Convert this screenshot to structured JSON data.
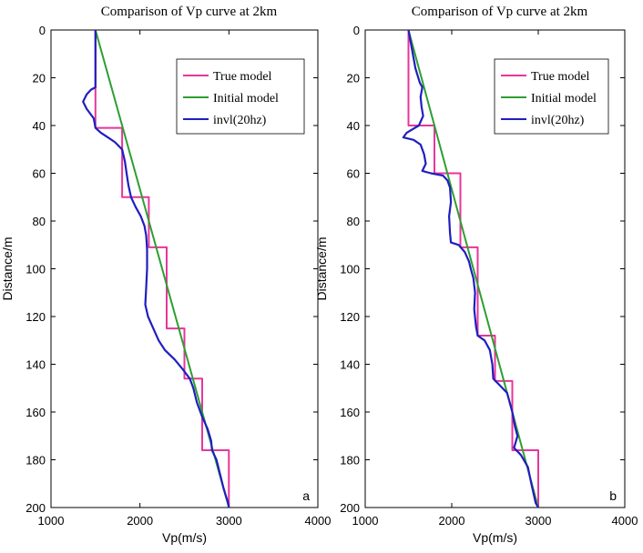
{
  "chart_data": [
    {
      "type": "line",
      "title": "Comparison of Vp curve at 2km",
      "xlabel": "Vp(m/s)",
      "ylabel": "Distance/m",
      "xlim": [
        1000,
        4000
      ],
      "ylim": [
        0,
        200
      ],
      "y_inverted": true,
      "xticks": [
        1000,
        2000,
        3000,
        4000
      ],
      "yticks": [
        0,
        20,
        40,
        60,
        80,
        100,
        120,
        140,
        160,
        180,
        200
      ],
      "panel_label": "a",
      "legend_position": "top-right",
      "series": [
        {
          "name": "True model",
          "color": "#e8359b",
          "points": [
            [
              1500,
              0
            ],
            [
              1500,
              41
            ],
            [
              1800,
              41
            ],
            [
              1800,
              70
            ],
            [
              2100,
              70
            ],
            [
              2100,
              91
            ],
            [
              2300,
              91
            ],
            [
              2300,
              125
            ],
            [
              2500,
              125
            ],
            [
              2500,
              146
            ],
            [
              2700,
              146
            ],
            [
              2700,
              176
            ],
            [
              3000,
              176
            ],
            [
              3000,
              200
            ]
          ]
        },
        {
          "name": "Initial model",
          "color": "#2e9e33",
          "points": [
            [
              1500,
              0
            ],
            [
              3000,
              200
            ]
          ]
        },
        {
          "name": "invl(20hz)",
          "color": "#1f1fbf",
          "points": [
            [
              1500,
              0
            ],
            [
              1500,
              24
            ],
            [
              1450,
              25
            ],
            [
              1400,
              27
            ],
            [
              1360,
              30
            ],
            [
              1400,
              33
            ],
            [
              1480,
              37
            ],
            [
              1500,
              41
            ],
            [
              1560,
              43
            ],
            [
              1640,
              45
            ],
            [
              1720,
              47
            ],
            [
              1800,
              50
            ],
            [
              1830,
              55
            ],
            [
              1850,
              60
            ],
            [
              1870,
              65
            ],
            [
              1900,
              70
            ],
            [
              1950,
              74
            ],
            [
              2010,
              78
            ],
            [
              2050,
              82
            ],
            [
              2070,
              86
            ],
            [
              2080,
              92
            ],
            [
              2080,
              100
            ],
            [
              2070,
              108
            ],
            [
              2060,
              115
            ],
            [
              2090,
              120
            ],
            [
              2150,
              125
            ],
            [
              2210,
              130
            ],
            [
              2280,
              134
            ],
            [
              2390,
              138
            ],
            [
              2480,
              142
            ],
            [
              2560,
              146
            ],
            [
              2600,
              150
            ],
            [
              2640,
              156
            ],
            [
              2700,
              162
            ],
            [
              2760,
              167
            ],
            [
              2800,
              172
            ],
            [
              2810,
              176
            ],
            [
              2860,
              180
            ],
            [
              2900,
              186
            ],
            [
              2940,
              192
            ],
            [
              2990,
              198
            ],
            [
              3000,
              200
            ]
          ]
        }
      ]
    },
    {
      "type": "line",
      "title": "Comparison of Vp curve at 2km",
      "xlabel": "Vp(m/s)",
      "ylabel": "Distance/m",
      "xlim": [
        1000,
        4000
      ],
      "ylim": [
        0,
        200
      ],
      "y_inverted": true,
      "xticks": [
        1000,
        2000,
        3000,
        4000
      ],
      "yticks": [
        0,
        20,
        40,
        60,
        80,
        100,
        120,
        140,
        160,
        180,
        200
      ],
      "panel_label": "b",
      "legend_position": "top-right",
      "series": [
        {
          "name": "True model",
          "color": "#e8359b",
          "points": [
            [
              1500,
              0
            ],
            [
              1500,
              40
            ],
            [
              1800,
              40
            ],
            [
              1800,
              60
            ],
            [
              2100,
              60
            ],
            [
              2100,
              91
            ],
            [
              2300,
              91
            ],
            [
              2300,
              128
            ],
            [
              2500,
              128
            ],
            [
              2500,
              147
            ],
            [
              2700,
              147
            ],
            [
              2700,
              176
            ],
            [
              3000,
              176
            ],
            [
              3000,
              200
            ]
          ]
        },
        {
          "name": "Initial model",
          "color": "#2e9e33",
          "points": [
            [
              1500,
              0
            ],
            [
              3000,
              200
            ]
          ]
        },
        {
          "name": "invl(20hz)",
          "color": "#1f1fbf",
          "points": [
            [
              1500,
              0
            ],
            [
              1540,
              8
            ],
            [
              1580,
              16
            ],
            [
              1630,
              22
            ],
            [
              1660,
              24
            ],
            [
              1640,
              28
            ],
            [
              1650,
              32
            ],
            [
              1670,
              36
            ],
            [
              1620,
              40
            ],
            [
              1480,
              43
            ],
            [
              1440,
              45
            ],
            [
              1560,
              46
            ],
            [
              1640,
              48
            ],
            [
              1680,
              52
            ],
            [
              1700,
              56
            ],
            [
              1660,
              59
            ],
            [
              1760,
              60
            ],
            [
              1900,
              61
            ],
            [
              1950,
              63
            ],
            [
              1980,
              66
            ],
            [
              1990,
              72
            ],
            [
              1970,
              78
            ],
            [
              1980,
              85
            ],
            [
              1990,
              89
            ],
            [
              2080,
              90
            ],
            [
              2150,
              93
            ],
            [
              2200,
              97
            ],
            [
              2220,
              100
            ],
            [
              2250,
              104
            ],
            [
              2270,
              110
            ],
            [
              2260,
              117
            ],
            [
              2280,
              124
            ],
            [
              2300,
              128
            ],
            [
              2380,
              130
            ],
            [
              2440,
              134
            ],
            [
              2470,
              140
            ],
            [
              2480,
              146
            ],
            [
              2560,
              149
            ],
            [
              2640,
              152
            ],
            [
              2700,
              160
            ],
            [
              2730,
              166
            ],
            [
              2760,
              170
            ],
            [
              2720,
              175
            ],
            [
              2800,
              178
            ],
            [
              2880,
              183
            ],
            [
              2920,
              190
            ],
            [
              2970,
              198
            ],
            [
              3000,
              200
            ]
          ]
        }
      ]
    }
  ]
}
